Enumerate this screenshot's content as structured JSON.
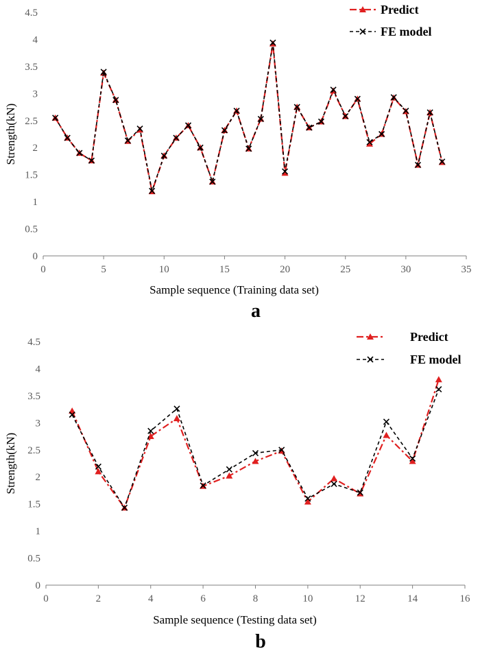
{
  "colors": {
    "predict": "#e02020",
    "fe": "#000000",
    "axis": "#7f7f7f"
  },
  "chart_data": [
    {
      "type": "line",
      "panel_label": "a",
      "xlabel": "Sample sequence (Training data set)",
      "ylabel": "Strength(kN)",
      "xlim": [
        0,
        35
      ],
      "ylim": [
        0,
        4.5
      ],
      "x_ticks": [
        0,
        5,
        10,
        15,
        20,
        25,
        30,
        35
      ],
      "y_ticks": [
        0,
        0.5,
        1,
        1.5,
        2,
        2.5,
        3,
        3.5,
        4,
        4.5
      ],
      "y_tick_labels": [
        "0",
        "0.5",
        "1",
        "1.5",
        "2",
        "2.5",
        "3",
        "3.5",
        "4",
        "4.5"
      ],
      "legend_position": "top-right",
      "x": [
        1,
        2,
        3,
        4,
        5,
        6,
        7,
        8,
        9,
        10,
        11,
        12,
        13,
        14,
        15,
        16,
        17,
        18,
        19,
        20,
        21,
        22,
        23,
        24,
        25,
        26,
        27,
        28,
        29,
        30,
        31,
        32,
        33
      ],
      "series": [
        {
          "name": "Predict",
          "marker": "triangle",
          "values": [
            2.55,
            2.18,
            1.9,
            1.76,
            3.38,
            2.88,
            2.12,
            2.33,
            1.19,
            1.85,
            2.18,
            2.41,
            2.0,
            1.37,
            2.32,
            2.68,
            1.98,
            2.53,
            3.92,
            1.53,
            2.75,
            2.37,
            2.48,
            3.05,
            2.58,
            2.9,
            2.07,
            2.25,
            2.92,
            2.67,
            1.68,
            2.65,
            1.73
          ]
        },
        {
          "name": "FE model",
          "marker": "x",
          "values": [
            2.55,
            2.18,
            1.9,
            1.76,
            3.4,
            2.88,
            2.13,
            2.35,
            1.2,
            1.85,
            2.18,
            2.41,
            2.0,
            1.37,
            2.32,
            2.68,
            1.98,
            2.53,
            3.94,
            1.56,
            2.75,
            2.37,
            2.48,
            3.07,
            2.58,
            2.9,
            2.1,
            2.25,
            2.93,
            2.68,
            1.68,
            2.65,
            1.74
          ]
        }
      ]
    },
    {
      "type": "line",
      "panel_label": "b",
      "xlabel": "Sample sequence (Testing data set)",
      "ylabel": "Strength(kN)",
      "xlim": [
        0,
        16
      ],
      "ylim": [
        0,
        4.5
      ],
      "x_ticks": [
        0,
        2,
        4,
        6,
        8,
        10,
        12,
        14,
        16
      ],
      "y_ticks": [
        0,
        0.5,
        1,
        1.5,
        2,
        2.5,
        3,
        3.5,
        4,
        4.5
      ],
      "y_tick_labels": [
        "0",
        "0.5",
        "1",
        "1.5",
        "2",
        "2.5",
        "3",
        "3.5",
        "4",
        "4.5"
      ],
      "legend_position": "top-right",
      "x": [
        1,
        2,
        3,
        4,
        5,
        6,
        7,
        8,
        9,
        10,
        11,
        12,
        13,
        14,
        15
      ],
      "series": [
        {
          "name": "Predict",
          "marker": "triangle",
          "values": [
            3.22,
            2.1,
            1.43,
            2.75,
            3.08,
            1.83,
            2.02,
            2.29,
            2.48,
            1.54,
            1.97,
            1.69,
            2.77,
            2.29,
            3.8
          ]
        },
        {
          "name": "FE model",
          "marker": "x",
          "values": [
            3.15,
            2.19,
            1.43,
            2.85,
            3.26,
            1.84,
            2.14,
            2.44,
            2.5,
            1.6,
            1.87,
            1.71,
            3.02,
            2.34,
            3.62
          ]
        }
      ]
    }
  ]
}
